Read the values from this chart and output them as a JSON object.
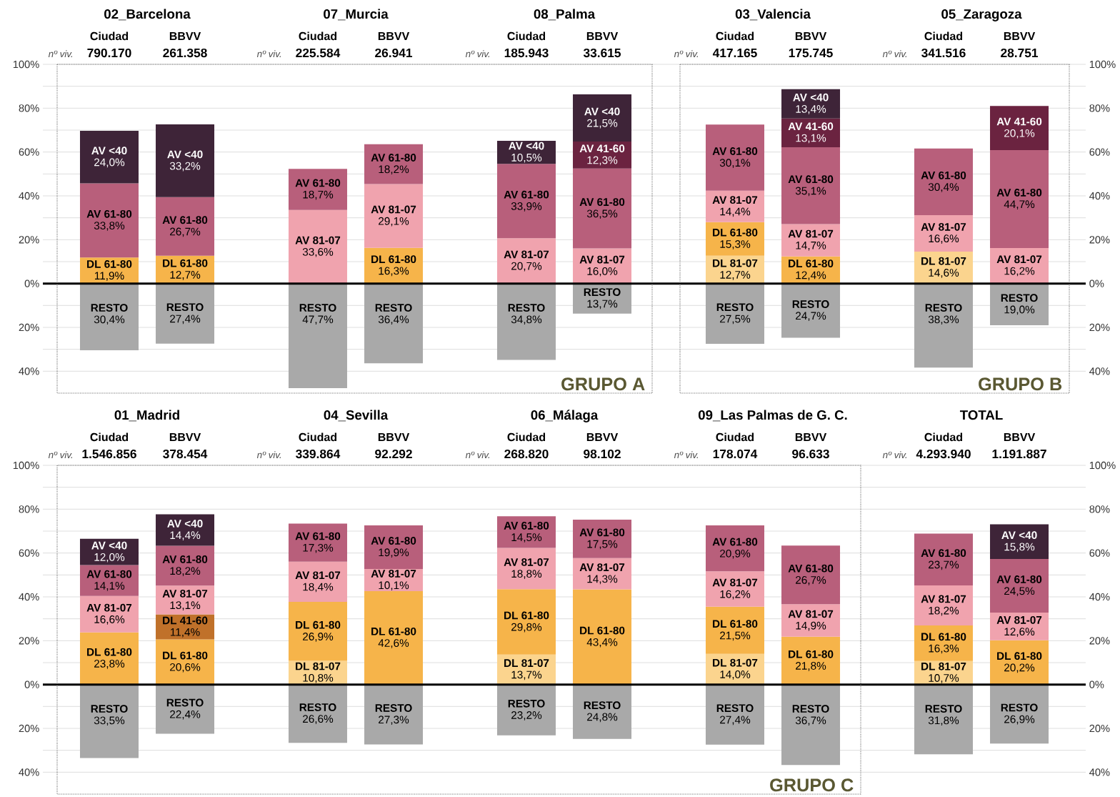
{
  "chart_data": [
    {
      "type": "bar",
      "stacked": true,
      "title": "02_Barcelona",
      "categories": [
        "Ciudad",
        "BBVV"
      ],
      "ylim": [
        0,
        100
      ],
      "yticks": [
        {
          "value": 0,
          "label": "0%"
        },
        {
          "value": 10,
          "label": null
        },
        {
          "value": 20,
          "label": "20%"
        },
        {
          "value": 30,
          "label": null
        },
        {
          "value": 40,
          "label": "40%"
        },
        {
          "value": 50,
          "label": null
        },
        {
          "value": 60,
          "label": "60%"
        },
        {
          "value": 70,
          "label": null
        },
        {
          "value": 80,
          "label": "80%"
        },
        {
          "value": 90,
          "label": null
        },
        {
          "value": 100,
          "label": "100%"
        }
      ],
      "y2lim": [
        50,
        -100
      ],
      "y2ticks": [
        {
          "value": 10,
          "label": null
        },
        {
          "value": 20,
          "label": "20%"
        },
        {
          "value": 30,
          "label": null
        },
        {
          "value": 40,
          "label": "40%"
        }
      ],
      "grid": "y",
      "ref_lines": [
        {
          "axis": "y",
          "value": 0
        }
      ],
      "annotations": [
        "nº viv.",
        "790.170",
        "261.358"
      ],
      "series": [
        {
          "name": "DL 61-80",
          "color": "#f6b44a",
          "values": [
            11.9,
            12.7
          ],
          "value_labels": [
            "11,9%",
            "12,7%"
          ]
        },
        {
          "name": "AV 61-80",
          "color": "#b85f7b",
          "values": [
            33.8,
            26.7
          ],
          "value_labels": [
            "33,8%",
            "26,7%"
          ]
        },
        {
          "name": "AV <40",
          "color": "#3e2438",
          "values": [
            24.0,
            33.2
          ],
          "value_labels": [
            "24,0%",
            "33,2%"
          ]
        },
        {
          "name": "RESTO",
          "color": "#a9a9a9",
          "axis": "y2",
          "values": [
            30.4,
            27.4
          ],
          "value_labels": [
            "30,4%",
            "27,4%"
          ]
        }
      ]
    },
    {
      "type": "bar",
      "stacked": true,
      "title": "07_Murcia",
      "categories": [
        "Ciudad",
        "BBVV"
      ],
      "ylim": [
        0,
        100
      ],
      "yticks": [
        {
          "value": 0,
          "label": null
        },
        {
          "value": 10,
          "label": null
        },
        {
          "value": 20,
          "label": null
        },
        {
          "value": 30,
          "label": null
        },
        {
          "value": 40,
          "label": null
        },
        {
          "value": 50,
          "label": null
        },
        {
          "value": 60,
          "label": null
        },
        {
          "value": 70,
          "label": null
        },
        {
          "value": 80,
          "label": null
        },
        {
          "value": 90,
          "label": null
        },
        {
          "value": 100,
          "label": null
        }
      ],
      "y2lim": [
        50,
        -100
      ],
      "y2ticks": [
        {
          "value": 10,
          "label": null
        },
        {
          "value": 20,
          "label": null
        },
        {
          "value": 30,
          "label": null
        },
        {
          "value": 40,
          "label": null
        }
      ],
      "grid": "y",
      "tick_labels": "x",
      "ref_lines": [
        {
          "axis": "y",
          "value": 0
        }
      ],
      "annotations": [
        "nº viv.",
        "225.584",
        "26.941"
      ],
      "series": [
        {
          "name": "DL 61-80",
          "color": "#f6b44a",
          "values": [
            null,
            16.3
          ],
          "value_labels": [
            null,
            "16,3%"
          ]
        },
        {
          "name": "AV 81-07",
          "color": "#f0a3ae",
          "values": [
            33.6,
            29.1
          ],
          "value_labels": [
            "33,6%",
            "29,1%"
          ]
        },
        {
          "name": "AV 61-80",
          "color": "#b85f7b",
          "values": [
            18.7,
            18.2
          ],
          "value_labels": [
            "18,7%",
            "18,2%"
          ]
        },
        {
          "name": "RESTO",
          "color": "#a9a9a9",
          "axis": "y2",
          "values": [
            47.7,
            36.4
          ],
          "value_labels": [
            "47,7%",
            "36,4%"
          ]
        }
      ]
    },
    {
      "type": "bar",
      "stacked": true,
      "title": "08_Palma",
      "categories": [
        "Ciudad",
        "BBVV"
      ],
      "ylim": [
        0,
        100
      ],
      "yticks": [
        {
          "value": 0,
          "label": null
        },
        {
          "value": 10,
          "label": null
        },
        {
          "value": 20,
          "label": null
        },
        {
          "value": 30,
          "label": null
        },
        {
          "value": 40,
          "label": null
        },
        {
          "value": 50,
          "label": null
        },
        {
          "value": 60,
          "label": null
        },
        {
          "value": 70,
          "label": null
        },
        {
          "value": 80,
          "label": null
        },
        {
          "value": 90,
          "label": null
        },
        {
          "value": 100,
          "label": null
        }
      ],
      "y2lim": [
        50,
        -100
      ],
      "y2ticks": [
        {
          "value": 10,
          "label": null
        },
        {
          "value": 20,
          "label": null
        },
        {
          "value": 30,
          "label": null
        },
        {
          "value": 40,
          "label": null
        }
      ],
      "grid": "y",
      "tick_labels": "x",
      "ref_lines": [
        {
          "axis": "y",
          "value": 0
        }
      ],
      "annotations": [
        "nº viv.",
        "185.943",
        "33.615",
        "GRUPO A"
      ],
      "series": [
        {
          "name": "AV 81-07",
          "color": "#f0a3ae",
          "values": [
            20.7,
            16.0
          ],
          "value_labels": [
            "20,7%",
            "16,0%"
          ]
        },
        {
          "name": "AV 61-80",
          "color": "#b85f7b",
          "values": [
            33.9,
            36.5
          ],
          "value_labels": [
            "33,9%",
            "36,5%"
          ]
        },
        {
          "name": "AV 41-60",
          "color": "#6b2340",
          "values": [
            null,
            12.3
          ],
          "value_labels": [
            null,
            "12,3%"
          ]
        },
        {
          "name": "AV <40",
          "color": "#3e2438",
          "values": [
            10.5,
            21.5
          ],
          "value_labels": [
            "10,5%",
            "21,5%"
          ]
        },
        {
          "name": "RESTO",
          "color": "#a9a9a9",
          "axis": "y2",
          "values": [
            34.8,
            13.7
          ],
          "value_labels": [
            "34,8%",
            "13,7%"
          ]
        }
      ]
    },
    {
      "type": "bar",
      "stacked": true,
      "title": "03_Valencia",
      "categories": [
        "Ciudad",
        "BBVV"
      ],
      "ylim": [
        0,
        100
      ],
      "yticks": [
        {
          "value": 0,
          "label": null
        },
        {
          "value": 10,
          "label": null
        },
        {
          "value": 20,
          "label": null
        },
        {
          "value": 30,
          "label": null
        },
        {
          "value": 40,
          "label": null
        },
        {
          "value": 50,
          "label": null
        },
        {
          "value": 60,
          "label": null
        },
        {
          "value": 70,
          "label": null
        },
        {
          "value": 80,
          "label": null
        },
        {
          "value": 90,
          "label": null
        },
        {
          "value": 100,
          "label": null
        }
      ],
      "y2lim": [
        50,
        -100
      ],
      "y2ticks": [
        {
          "value": 10,
          "label": null
        },
        {
          "value": 20,
          "label": null
        },
        {
          "value": 30,
          "label": null
        },
        {
          "value": 40,
          "label": null
        }
      ],
      "grid": "y",
      "tick_labels": "x",
      "ref_lines": [
        {
          "axis": "y",
          "value": 0
        }
      ],
      "annotations": [
        "nº viv.",
        "417.165",
        "175.745"
      ],
      "series": [
        {
          "name": "DL 81-07",
          "color": "#fbd48e",
          "values": [
            12.7,
            null
          ],
          "value_labels": [
            "12,7%",
            null
          ]
        },
        {
          "name": "DL 61-80",
          "color": "#f6b44a",
          "values": [
            15.3,
            12.4
          ],
          "value_labels": [
            "15,3%",
            "12,4%"
          ]
        },
        {
          "name": "AV 81-07",
          "color": "#f0a3ae",
          "values": [
            14.4,
            14.7
          ],
          "value_labels": [
            "14,4%",
            "14,7%"
          ]
        },
        {
          "name": "AV 61-80",
          "color": "#b85f7b",
          "values": [
            30.1,
            35.1
          ],
          "value_labels": [
            "30,1%",
            "35,1%"
          ]
        },
        {
          "name": "AV 41-60",
          "color": "#6b2340",
          "values": [
            null,
            13.1
          ],
          "value_labels": [
            null,
            "13,1%"
          ]
        },
        {
          "name": "AV <40",
          "color": "#3e2438",
          "values": [
            null,
            13.4
          ],
          "value_labels": [
            null,
            "13,4%"
          ]
        },
        {
          "name": "RESTO",
          "color": "#a9a9a9",
          "axis": "y2",
          "values": [
            27.5,
            24.7
          ],
          "value_labels": [
            "27,5%",
            "24,7%"
          ]
        }
      ]
    },
    {
      "type": "bar",
      "stacked": true,
      "title": "05_Zaragoza",
      "categories": [
        "Ciudad",
        "BBVV"
      ],
      "ylim": [
        0,
        100
      ],
      "yticks": [
        {
          "value": 0,
          "label": "0%"
        },
        {
          "value": 10,
          "label": null
        },
        {
          "value": 20,
          "label": "20%"
        },
        {
          "value": 30,
          "label": null
        },
        {
          "value": 40,
          "label": "40%"
        },
        {
          "value": 50,
          "label": null
        },
        {
          "value": 60,
          "label": "60%"
        },
        {
          "value": 70,
          "label": null
        },
        {
          "value": 80,
          "label": "80%"
        },
        {
          "value": 90,
          "label": null
        },
        {
          "value": 100,
          "label": "100%"
        }
      ],
      "y2lim": [
        50,
        -100
      ],
      "y2ticks": [
        {
          "value": 10,
          "label": null
        },
        {
          "value": 20,
          "label": "20%"
        },
        {
          "value": 30,
          "label": null
        },
        {
          "value": 40,
          "label": "40%"
        }
      ],
      "grid": "y",
      "ref_lines": [
        {
          "axis": "y",
          "value": 0
        }
      ],
      "annotations": [
        "nº viv.",
        "341.516",
        "28.751",
        "GRUPO B"
      ],
      "series": [
        {
          "name": "DL 81-07",
          "color": "#fbd48e",
          "values": [
            14.6,
            null
          ],
          "value_labels": [
            "14,6%",
            null
          ]
        },
        {
          "name": "AV 81-07",
          "color": "#f0a3ae",
          "values": [
            16.6,
            16.2
          ],
          "value_labels": [
            "16,6%",
            "16,2%"
          ]
        },
        {
          "name": "AV 61-80",
          "color": "#b85f7b",
          "values": [
            30.4,
            44.7
          ],
          "value_labels": [
            "30,4%",
            "44,7%"
          ]
        },
        {
          "name": "AV 41-60",
          "color": "#6b2340",
          "values": [
            null,
            20.1
          ],
          "value_labels": [
            null,
            "20,1%"
          ]
        },
        {
          "name": "RESTO",
          "color": "#a9a9a9",
          "axis": "y2",
          "values": [
            38.3,
            19.0
          ],
          "value_labels": [
            "38,3%",
            "19,0%"
          ]
        }
      ]
    },
    {
      "type": "bar",
      "stacked": true,
      "title": "01_Madrid",
      "categories": [
        "Ciudad",
        "BBVV"
      ],
      "ylim": [
        0,
        100
      ],
      "yticks": [
        {
          "value": 0,
          "label": "0%"
        },
        {
          "value": 10,
          "label": null
        },
        {
          "value": 20,
          "label": "20%"
        },
        {
          "value": 30,
          "label": null
        },
        {
          "value": 40,
          "label": "40%"
        },
        {
          "value": 50,
          "label": null
        },
        {
          "value": 60,
          "label": "60%"
        },
        {
          "value": 70,
          "label": null
        },
        {
          "value": 80,
          "label": "80%"
        },
        {
          "value": 90,
          "label": null
        },
        {
          "value": 100,
          "label": "100%"
        }
      ],
      "y2lim": [
        50,
        -100
      ],
      "y2ticks": [
        {
          "value": 10,
          "label": null
        },
        {
          "value": 20,
          "label": "20%"
        },
        {
          "value": 30,
          "label": null
        },
        {
          "value": 40,
          "label": "40%"
        }
      ],
      "grid": "y",
      "ref_lines": [
        {
          "axis": "y",
          "value": 0
        }
      ],
      "annotations": [
        "nº viv.",
        "1.546.856",
        "378.454"
      ],
      "series": [
        {
          "name": "DL 61-80",
          "color": "#f6b44a",
          "values": [
            23.8,
            20.6
          ],
          "value_labels": [
            "23,8%",
            "20,6%"
          ]
        },
        {
          "name": "DL 41-60",
          "color": "#c0712a",
          "values": [
            null,
            11.4
          ],
          "value_labels": [
            null,
            "11,4%"
          ]
        },
        {
          "name": "AV 81-07",
          "color": "#f0a3ae",
          "values": [
            16.6,
            13.1
          ],
          "value_labels": [
            "16,6%",
            "13,1%"
          ]
        },
        {
          "name": "AV 61-80",
          "color": "#b85f7b",
          "values": [
            14.1,
            18.2
          ],
          "value_labels": [
            "14,1%",
            "18,2%"
          ]
        },
        {
          "name": "AV <40",
          "color": "#3e2438",
          "values": [
            12.0,
            14.4
          ],
          "value_labels": [
            "12,0%",
            "14,4%"
          ]
        },
        {
          "name": "RESTO",
          "color": "#a9a9a9",
          "axis": "y2",
          "values": [
            33.5,
            22.4
          ],
          "value_labels": [
            "33,5%",
            "22,4%"
          ]
        }
      ]
    },
    {
      "type": "bar",
      "stacked": true,
      "title": "04_Sevilla",
      "categories": [
        "Ciudad",
        "BBVV"
      ],
      "ylim": [
        0,
        100
      ],
      "yticks": [
        {
          "value": 0,
          "label": null
        },
        {
          "value": 10,
          "label": null
        },
        {
          "value": 20,
          "label": null
        },
        {
          "value": 30,
          "label": null
        },
        {
          "value": 40,
          "label": null
        },
        {
          "value": 50,
          "label": null
        },
        {
          "value": 60,
          "label": null
        },
        {
          "value": 70,
          "label": null
        },
        {
          "value": 80,
          "label": null
        },
        {
          "value": 90,
          "label": null
        },
        {
          "value": 100,
          "label": null
        }
      ],
      "y2lim": [
        50,
        -100
      ],
      "y2ticks": [
        {
          "value": 10,
          "label": null
        },
        {
          "value": 20,
          "label": null
        },
        {
          "value": 30,
          "label": null
        },
        {
          "value": 40,
          "label": null
        }
      ],
      "grid": "y",
      "tick_labels": "x",
      "ref_lines": [
        {
          "axis": "y",
          "value": 0
        }
      ],
      "annotations": [
        "nº viv.",
        "339.864",
        "92.292"
      ],
      "series": [
        {
          "name": "DL 81-07",
          "color": "#fbd48e",
          "values": [
            10.8,
            null
          ],
          "value_labels": [
            "10,8%",
            null
          ]
        },
        {
          "name": "DL 61-80",
          "color": "#f6b44a",
          "values": [
            26.9,
            42.6
          ],
          "value_labels": [
            "26,9%",
            "42,6%"
          ]
        },
        {
          "name": "AV 81-07",
          "color": "#f0a3ae",
          "values": [
            18.4,
            10.1
          ],
          "value_labels": [
            "18,4%",
            "10,1%"
          ]
        },
        {
          "name": "AV 61-80",
          "color": "#b85f7b",
          "values": [
            17.3,
            19.9
          ],
          "value_labels": [
            "17,3%",
            "19,9%"
          ]
        },
        {
          "name": "RESTO",
          "color": "#a9a9a9",
          "axis": "y2",
          "values": [
            26.6,
            27.3
          ],
          "value_labels": [
            "26,6%",
            "27,3%"
          ]
        }
      ]
    },
    {
      "type": "bar",
      "stacked": true,
      "title": "06_Málaga",
      "categories": [
        "Ciudad",
        "BBVV"
      ],
      "ylim": [
        0,
        100
      ],
      "yticks": [
        {
          "value": 0,
          "label": null
        },
        {
          "value": 10,
          "label": null
        },
        {
          "value": 20,
          "label": null
        },
        {
          "value": 30,
          "label": null
        },
        {
          "value": 40,
          "label": null
        },
        {
          "value": 50,
          "label": null
        },
        {
          "value": 60,
          "label": null
        },
        {
          "value": 70,
          "label": null
        },
        {
          "value": 80,
          "label": null
        },
        {
          "value": 90,
          "label": null
        },
        {
          "value": 100,
          "label": null
        }
      ],
      "y2lim": [
        50,
        -100
      ],
      "y2ticks": [
        {
          "value": 10,
          "label": null
        },
        {
          "value": 20,
          "label": null
        },
        {
          "value": 30,
          "label": null
        },
        {
          "value": 40,
          "label": null
        }
      ],
      "grid": "y",
      "tick_labels": "x",
      "ref_lines": [
        {
          "axis": "y",
          "value": 0
        }
      ],
      "annotations": [
        "nº viv.",
        "268.820",
        "98.102"
      ],
      "series": [
        {
          "name": "DL 81-07",
          "color": "#fbd48e",
          "values": [
            13.7,
            null
          ],
          "value_labels": [
            "13,7%",
            null
          ]
        },
        {
          "name": "DL 61-80",
          "color": "#f6b44a",
          "values": [
            29.8,
            43.4
          ],
          "value_labels": [
            "29,8%",
            "43,4%"
          ]
        },
        {
          "name": "AV 81-07",
          "color": "#f0a3ae",
          "values": [
            18.8,
            14.3
          ],
          "value_labels": [
            "18,8%",
            "14,3%"
          ]
        },
        {
          "name": "AV 61-80",
          "color": "#b85f7b",
          "values": [
            14.5,
            17.5
          ],
          "value_labels": [
            "14,5%",
            "17,5%"
          ]
        },
        {
          "name": "RESTO",
          "color": "#a9a9a9",
          "axis": "y2",
          "values": [
            23.2,
            24.8
          ],
          "value_labels": [
            "23,2%",
            "24,8%"
          ]
        }
      ]
    },
    {
      "type": "bar",
      "stacked": true,
      "title": "09_Las Palmas de G. C.",
      "categories": [
        "Ciudad",
        "BBVV"
      ],
      "ylim": [
        0,
        100
      ],
      "yticks": [
        {
          "value": 0,
          "label": null
        },
        {
          "value": 10,
          "label": null
        },
        {
          "value": 20,
          "label": null
        },
        {
          "value": 30,
          "label": null
        },
        {
          "value": 40,
          "label": null
        },
        {
          "value": 50,
          "label": null
        },
        {
          "value": 60,
          "label": null
        },
        {
          "value": 70,
          "label": null
        },
        {
          "value": 80,
          "label": null
        },
        {
          "value": 90,
          "label": null
        },
        {
          "value": 100,
          "label": null
        }
      ],
      "y2lim": [
        50,
        -100
      ],
      "y2ticks": [
        {
          "value": 10,
          "label": null
        },
        {
          "value": 20,
          "label": null
        },
        {
          "value": 30,
          "label": null
        },
        {
          "value": 40,
          "label": null
        }
      ],
      "grid": "y",
      "tick_labels": "x",
      "ref_lines": [
        {
          "axis": "y",
          "value": 0
        }
      ],
      "annotations": [
        "nº viv.",
        "178.074",
        "96.633",
        "GRUPO C"
      ],
      "series": [
        {
          "name": "DL 81-07",
          "color": "#fbd48e",
          "values": [
            14.0,
            null
          ],
          "value_labels": [
            "14,0%",
            null
          ]
        },
        {
          "name": "DL 61-80",
          "color": "#f6b44a",
          "values": [
            21.5,
            21.8
          ],
          "value_labels": [
            "21,5%",
            "21,8%"
          ]
        },
        {
          "name": "AV 81-07",
          "color": "#f0a3ae",
          "values": [
            16.2,
            14.9
          ],
          "value_labels": [
            "16,2%",
            "14,9%"
          ]
        },
        {
          "name": "AV 61-80",
          "color": "#b85f7b",
          "values": [
            20.9,
            26.7
          ],
          "value_labels": [
            "20,9%",
            "26,7%"
          ]
        },
        {
          "name": "RESTO",
          "color": "#a9a9a9",
          "axis": "y2",
          "values": [
            27.4,
            36.7
          ],
          "value_labels": [
            "27,4%",
            "36,7%"
          ]
        }
      ]
    },
    {
      "type": "bar",
      "stacked": true,
      "title": "TOTAL",
      "categories": [
        "Ciudad",
        "BBVV"
      ],
      "ylim": [
        0,
        100
      ],
      "yticks": [
        {
          "value": 0,
          "label": "0%"
        },
        {
          "value": 10,
          "label": null
        },
        {
          "value": 20,
          "label": "20%"
        },
        {
          "value": 30,
          "label": null
        },
        {
          "value": 40,
          "label": "40%"
        },
        {
          "value": 50,
          "label": null
        },
        {
          "value": 60,
          "label": "60%"
        },
        {
          "value": 70,
          "label": null
        },
        {
          "value": 80,
          "label": "80%"
        },
        {
          "value": 90,
          "label": null
        },
        {
          "value": 100,
          "label": "100%"
        }
      ],
      "y2lim": [
        40,
        -100
      ],
      "y2ticks": [
        {
          "value": 10,
          "label": null
        },
        {
          "value": 20,
          "label": "20%"
        },
        {
          "value": 30,
          "label": null
        },
        {
          "value": 40,
          "label": "40%"
        }
      ],
      "grid": "y",
      "ref_lines": [
        {
          "axis": "y",
          "value": 0
        }
      ],
      "annotations": [
        "nº viv.",
        "4.293.940",
        "1.191.887"
      ],
      "series": [
        {
          "name": "DL 81-07",
          "color": "#fbd48e",
          "values": [
            10.7,
            null
          ],
          "value_labels": [
            "10,7%",
            null
          ]
        },
        {
          "name": "DL 61-80",
          "color": "#f6b44a",
          "values": [
            16.3,
            20.2
          ],
          "value_labels": [
            "16,3%",
            "20,2%"
          ]
        },
        {
          "name": "AV 81-07",
          "color": "#f0a3ae",
          "values": [
            18.2,
            12.6
          ],
          "value_labels": [
            "18,2%",
            "12,6%"
          ]
        },
        {
          "name": "AV 61-80",
          "color": "#b85f7b",
          "values": [
            23.7,
            24.5
          ],
          "value_labels": [
            "23,7%",
            "24,5%"
          ]
        },
        {
          "name": "AV <40",
          "color": "#3e2438",
          "values": [
            null,
            15.8
          ],
          "value_labels": [
            null,
            "15,8%"
          ]
        },
        {
          "name": "RESTO",
          "color": "#a9a9a9",
          "axis": "y2",
          "values": [
            31.8,
            26.9
          ],
          "value_labels": [
            "31,8%",
            "26,9%"
          ]
        }
      ]
    }
  ]
}
